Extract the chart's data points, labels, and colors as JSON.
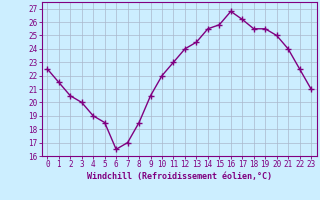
{
  "x": [
    0,
    1,
    2,
    3,
    4,
    5,
    6,
    7,
    8,
    9,
    10,
    11,
    12,
    13,
    14,
    15,
    16,
    17,
    18,
    19,
    20,
    21,
    22,
    23
  ],
  "y": [
    22.5,
    21.5,
    20.5,
    20.0,
    19.0,
    18.5,
    16.5,
    17.0,
    18.5,
    20.5,
    22.0,
    23.0,
    24.0,
    24.5,
    25.5,
    25.8,
    26.8,
    26.2,
    25.5,
    25.5,
    25.0,
    24.0,
    22.5,
    21.0
  ],
  "line_color": "#800080",
  "marker": "+",
  "markersize": 4,
  "linewidth": 1.0,
  "bg_color": "#cceeff",
  "grid_color": "#aab8cc",
  "xlabel": "Windchill (Refroidissement éolien,°C)",
  "xlim": [
    -0.5,
    23.5
  ],
  "ylim": [
    16,
    27.5
  ],
  "yticks": [
    16,
    17,
    18,
    19,
    20,
    21,
    22,
    23,
    24,
    25,
    26,
    27
  ],
  "xtick_labels": [
    "0",
    "1",
    "2",
    "3",
    "4",
    "5",
    "6",
    "7",
    "8",
    "9",
    "10",
    "11",
    "12",
    "13",
    "14",
    "15",
    "16",
    "17",
    "18",
    "19",
    "20",
    "21",
    "22",
    "23"
  ],
  "tick_color": "#800080",
  "spine_color": "#800080",
  "xlabel_fontsize": 6,
  "tick_fontsize": 5.5,
  "xlabel_fontweight": "bold"
}
